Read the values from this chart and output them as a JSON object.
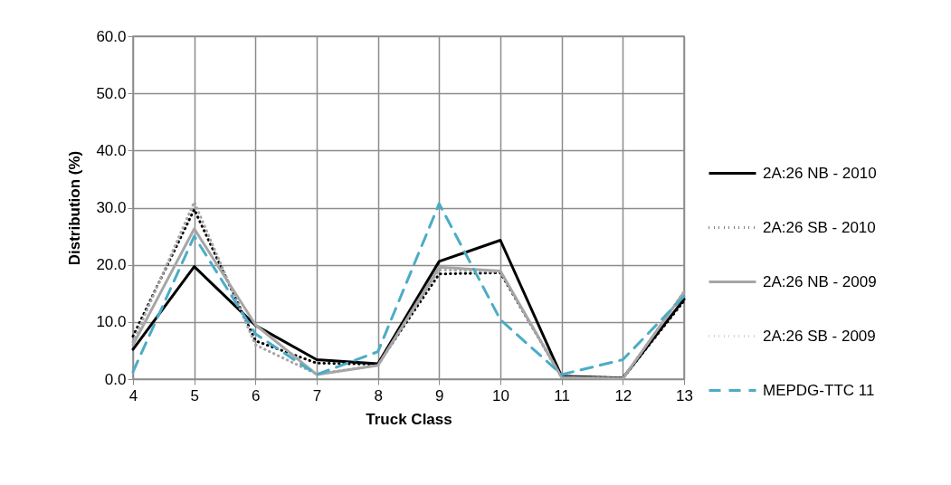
{
  "chart_data": {
    "type": "line",
    "xlabel": "Truck Class",
    "ylabel": "Distribution (%)",
    "categories": [
      "4",
      "5",
      "6",
      "7",
      "8",
      "9",
      "10",
      "11",
      "12",
      "13"
    ],
    "series": [
      {
        "name": "2A:26 NB - 2010",
        "color": "#000000",
        "line_style": "solid",
        "values": [
          5.2,
          19.7,
          9.4,
          3.4,
          2.7,
          20.6,
          24.3,
          0.5,
          0.2,
          14.0
        ]
      },
      {
        "name": "2A:26 SB - 2010",
        "color": "#000000",
        "line_style": "dotted",
        "values": [
          7.5,
          29.7,
          6.7,
          2.8,
          2.6,
          18.4,
          18.6,
          0.4,
          0.2,
          13.7
        ]
      },
      {
        "name": "2A:26 NB - 2009",
        "color": "#a6a6a6",
        "line_style": "solid",
        "values": [
          6.0,
          26.3,
          9.5,
          0.8,
          2.4,
          19.6,
          18.9,
          0.3,
          0.1,
          15.2
        ]
      },
      {
        "name": "2A:26 SB - 2009",
        "color": "#a6a6a6",
        "line_style": "dotted",
        "values": [
          6.5,
          31.0,
          6.0,
          0.9,
          2.4,
          19.1,
          18.8,
          0.3,
          0.1,
          15.3
        ]
      },
      {
        "name": "MEPDG-TTC 11",
        "color": "#4bacc6",
        "line_style": "dashed",
        "values": [
          1.3,
          25.0,
          7.9,
          0.8,
          4.8,
          30.7,
          10.4,
          0.8,
          3.4,
          14.5
        ]
      }
    ],
    "ylim": [
      0,
      60
    ],
    "yticks": [
      {
        "value": 0,
        "label": "0.0"
      },
      {
        "value": 10,
        "label": "10.0"
      },
      {
        "value": 20,
        "label": "20.0"
      },
      {
        "value": 30,
        "label": "30.0"
      },
      {
        "value": 40,
        "label": "40.0"
      },
      {
        "value": 50,
        "label": "50.0"
      },
      {
        "value": 60,
        "label": "60.0"
      }
    ],
    "grid": true,
    "legend": "right",
    "marker": "none"
  }
}
